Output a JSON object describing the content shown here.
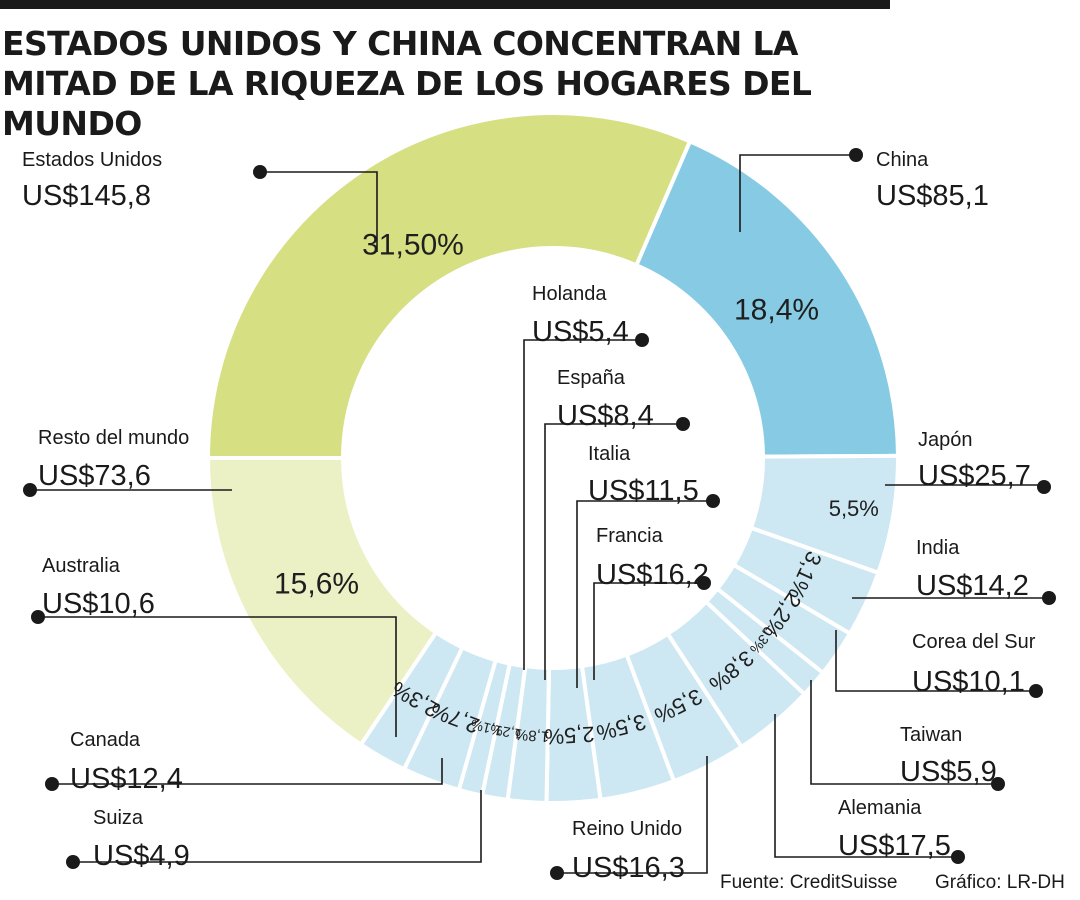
{
  "chart_data": {
    "type": "donut",
    "title": "ESTADOS UNIDOS Y CHINA CONCENTRAN LA MITAD DE LA RIQUEZA DE LOS HOGARES DEL MUNDO",
    "slices": [
      {
        "name": "Estados Unidos",
        "value": "US$145,8",
        "pct": 31.5,
        "pct_label": "31,50%",
        "color": "#d6df82"
      },
      {
        "name": "China",
        "value": "US$85,1",
        "pct": 18.4,
        "pct_label": "18,4%",
        "color": "#86cbe3"
      },
      {
        "name": "Japón",
        "value": "US$25,7",
        "pct": 5.5,
        "pct_label": "5,5%",
        "color": "#cde8f3"
      },
      {
        "name": "India",
        "value": "US$14,2",
        "pct": 3.1,
        "pct_label": "3,1%",
        "color": "#cde8f3"
      },
      {
        "name": "Corea del Sur",
        "value": "US$10,1",
        "pct": 2.2,
        "pct_label": "2,2%",
        "color": "#cde8f3"
      },
      {
        "name": "Taiwan",
        "value": "US$5,9",
        "pct": 1.3,
        "pct_label": "1,3%",
        "color": "#cde8f3"
      },
      {
        "name": "Alemania",
        "value": "US$17,5",
        "pct": 3.8,
        "pct_label": "3,8%",
        "color": "#cde8f3"
      },
      {
        "name": "Reino Unido",
        "value": "US$16,3",
        "pct": 3.5,
        "pct_label": "3,5%",
        "color": "#cde8f3"
      },
      {
        "name": "Francia",
        "value": "US$16,2",
        "pct": 3.5,
        "pct_label": "3,5%",
        "color": "#cde8f3"
      },
      {
        "name": "Italia",
        "value": "US$11,5",
        "pct": 2.5,
        "pct_label": "2,5%",
        "color": "#cde8f3"
      },
      {
        "name": "España",
        "value": "US$8,4",
        "pct": 1.8,
        "pct_label": "1,8%",
        "color": "#cde8f3"
      },
      {
        "name": "Holanda",
        "value": "US$5,4",
        "pct": 1.2,
        "pct_label": "1,2%",
        "color": "#cde8f3"
      },
      {
        "name": "Suiza",
        "value": "US$4,9",
        "pct": 1.1,
        "pct_label": "1,1%",
        "color": "#cde8f3"
      },
      {
        "name": "Canada",
        "value": "US$12,4",
        "pct": 2.7,
        "pct_label": "2,7%",
        "color": "#cde8f3"
      },
      {
        "name": "Australia",
        "value": "US$10,6",
        "pct": 2.3,
        "pct_label": "2,3%",
        "color": "#cde8f3"
      },
      {
        "name": "Resto del mundo",
        "value": "US$73,6",
        "pct": 15.6,
        "pct_label": "15,6%",
        "color": "#ebf1c4"
      }
    ]
  },
  "footer": {
    "source": "Fuente: CreditSuisse",
    "credit": "Gráfico: LR-DH"
  }
}
